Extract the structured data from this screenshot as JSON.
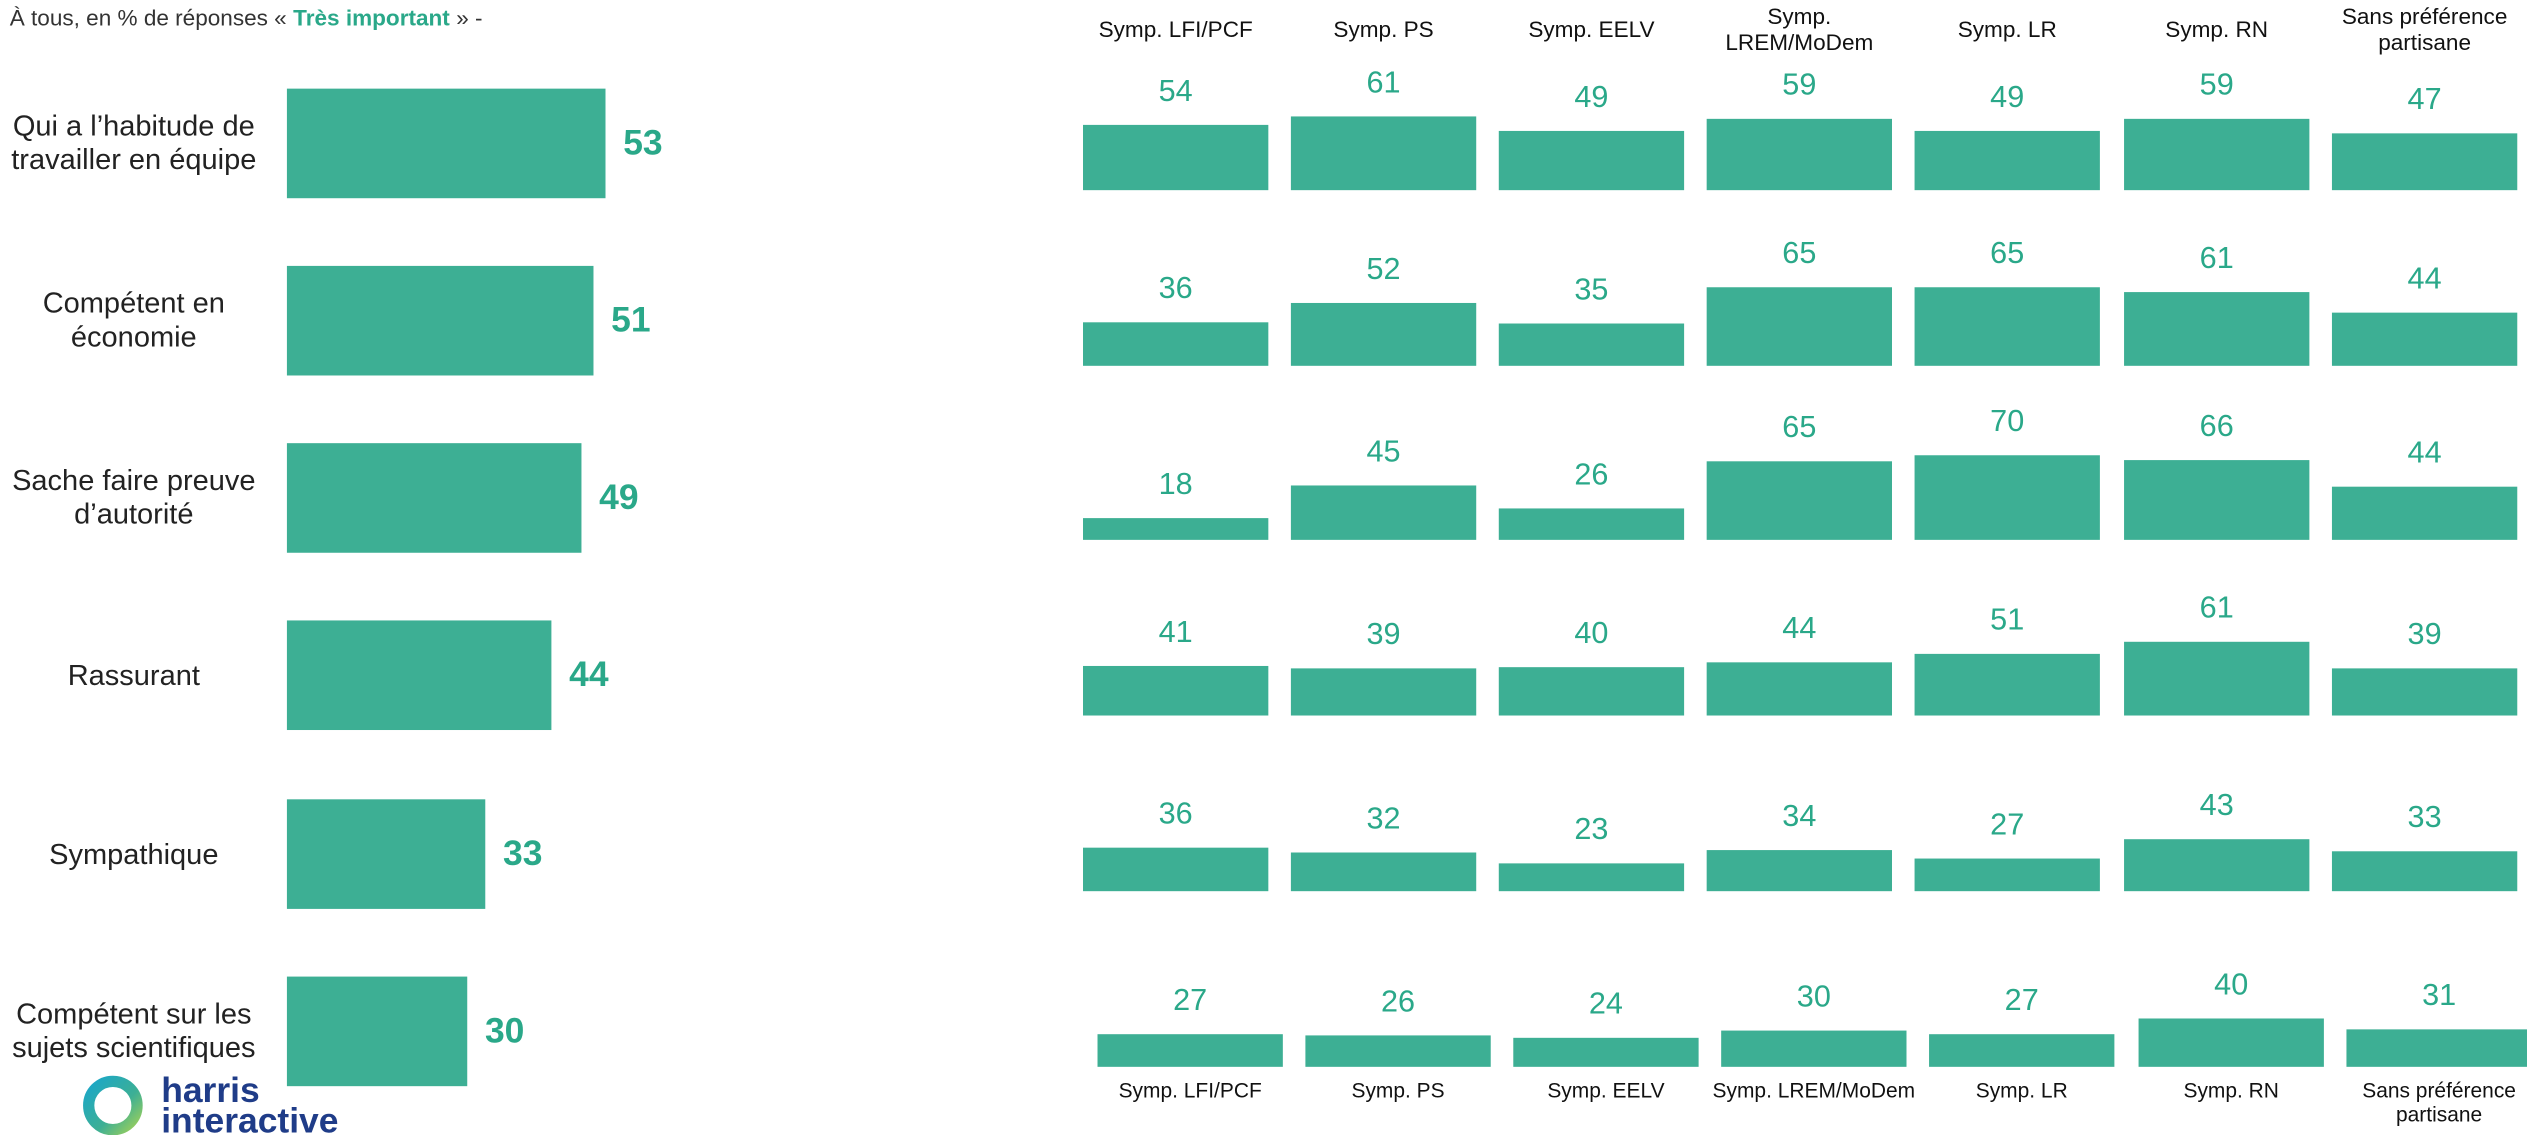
{
  "subtitle": {
    "text": "À tous, en % de réponses «",
    "emphasis": "Très important",
    "suffix": "» -"
  },
  "logo": [
    "harris",
    "interactive"
  ],
  "chart_data": [
    {
      "type": "hbar",
      "categories": [
        "Qui a l’habitude de travailler en équipe",
        "Compétent en économie",
        "Sache faire preuve d’autorité",
        "Rassurant",
        "Sympathique",
        "Compétent sur les sujets scientifiques"
      ],
      "values": [
        53,
        51,
        49,
        44,
        33,
        30
      ],
      "color": "#3daf94"
    },
    {
      "type": "multiples",
      "categories": [
        "Symp. LFI/PCF",
        "Symp. PS",
        "Symp. EELV",
        "Symp. LREM/MoDem",
        "Symp. LR",
        "Symp. RN",
        "Sans préférence partisane"
      ],
      "series": [
        {
          "values": [
            54,
            61,
            49,
            59,
            49,
            59,
            47
          ],
          "color": "#3daf94"
        },
        {
          "values": [
            36,
            52,
            35,
            65,
            65,
            61,
            44
          ],
          "color": "#3daf94"
        },
        {
          "values": [
            18,
            45,
            26,
            65,
            70,
            66,
            44
          ],
          "color": "#3daf94"
        },
        {
          "values": [
            41,
            39,
            40,
            44,
            51,
            61,
            39
          ],
          "color": "#3daf94"
        },
        {
          "values": [
            36,
            32,
            23,
            34,
            27,
            43,
            33
          ],
          "color": "#3daf94"
        },
        {
          "values": [
            27,
            26,
            24,
            30,
            27,
            40,
            31
          ],
          "color": "#3daf94"
        }
      ]
    }
  ]
}
